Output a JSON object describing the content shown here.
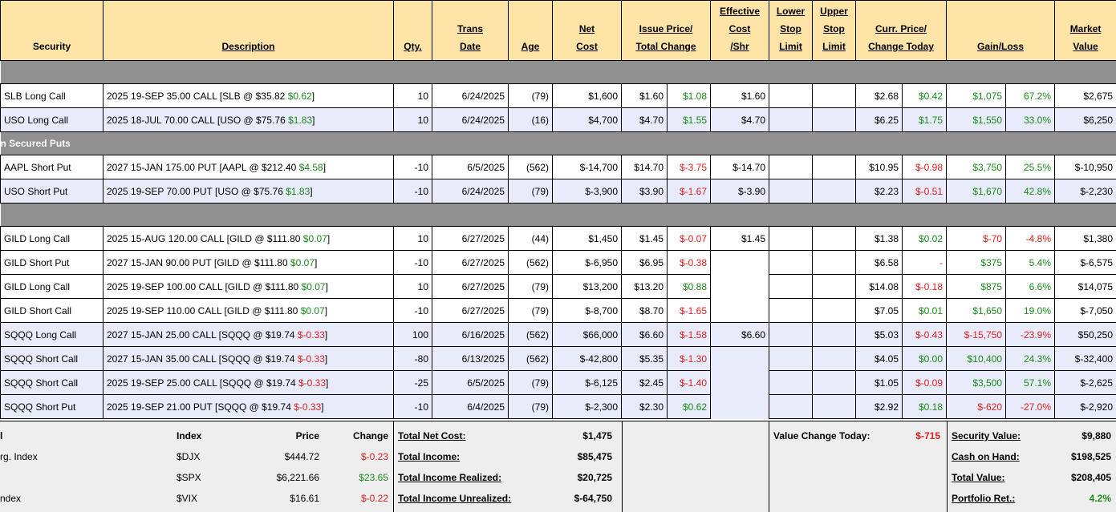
{
  "headers": {
    "security": "Security",
    "description": "Description",
    "qty": "Qty.",
    "trans_date": [
      "Trans",
      "Date"
    ],
    "age": "Age",
    "net_cost": [
      "Net",
      "Cost"
    ],
    "issue_price": [
      "Issue Price/",
      "Total Change"
    ],
    "effective_cost": [
      "Effective",
      "Cost",
      "/Shr"
    ],
    "lower_stop": [
      "Lower",
      "Stop",
      "Limit"
    ],
    "upper_stop": [
      "Upper",
      "Stop",
      "Limit"
    ],
    "curr_price": [
      "Curr. Price/",
      "Change Today"
    ],
    "gain_loss": "Gain/Loss",
    "market_value": [
      "Market",
      "Value"
    ]
  },
  "sections": [
    {
      "label": "",
      "rows": [
        {
          "security": "SLB Long Call",
          "desc": "2025 19-SEP 35.00 CALL [SLB @ $35.82 ",
          "desc_chg": "$0.62",
          "desc_chg_sign": "pos",
          "qty": "10",
          "date": "6/24/2025",
          "age": "(79)",
          "net": "$1,600",
          "issue": "$1.60",
          "tchg": "$1.08",
          "tchg_sign": "pos",
          "eff": "$1.60",
          "curr": "$2.68",
          "cchg": "$0.42",
          "cchg_sign": "pos",
          "gain": "$1,075",
          "gain_sign": "pos",
          "pct": "67.2%",
          "mv": "$2,675",
          "alt": false
        },
        {
          "security": "USO Long Call",
          "desc": "2025 18-JUL 70.00 CALL [USO @ $75.76 ",
          "desc_chg": "$1.83",
          "desc_chg_sign": "pos",
          "qty": "10",
          "date": "6/24/2025",
          "age": "(16)",
          "net": "$4,700",
          "issue": "$4.70",
          "tchg": "$1.55",
          "tchg_sign": "pos",
          "eff": "$4.70",
          "curr": "$6.25",
          "cchg": "$1.75",
          "cchg_sign": "pos",
          "gain": "$1,550",
          "gain_sign": "pos",
          "pct": "33.0%",
          "mv": "$6,250",
          "alt": true
        }
      ]
    },
    {
      "label": "n Secured Puts",
      "rows": [
        {
          "security": "AAPL Short Put",
          "desc": "2027 15-JAN 175.00 PUT [AAPL @ $212.40 ",
          "desc_chg": "$4.58",
          "desc_chg_sign": "pos",
          "qty": "-10",
          "date": "6/5/2025",
          "age": "(562)",
          "net": "$-14,700",
          "issue": "$14.70",
          "tchg": "$-3.75",
          "tchg_sign": "neg",
          "eff": "$-14.70",
          "curr": "$10.95",
          "cchg": "$-0.98",
          "cchg_sign": "neg",
          "gain": "$3,750",
          "gain_sign": "pos",
          "pct": "25.5%",
          "mv": "$-10,950",
          "alt": false
        },
        {
          "security": "USO Short Put",
          "desc": "2025 19-SEP 70.00 PUT [USO @ $75.76 ",
          "desc_chg": "$1.83",
          "desc_chg_sign": "pos",
          "qty": "-10",
          "date": "6/24/2025",
          "age": "(79)",
          "net": "$-3,900",
          "issue": "$3.90",
          "tchg": "$-1.67",
          "tchg_sign": "neg",
          "eff": "$-3.90",
          "curr": "$2.23",
          "cchg": "$-0.51",
          "cchg_sign": "neg",
          "gain": "$1,670",
          "gain_sign": "pos",
          "pct": "42.8%",
          "mv": "$-2,230",
          "alt": true
        }
      ]
    },
    {
      "label": "",
      "rows": [
        {
          "security": "GILD Long Call",
          "desc": "2025 15-AUG 120.00 CALL [GILD @ $111.80 ",
          "desc_chg": "$0.07",
          "desc_chg_sign": "pos",
          "qty": "10",
          "date": "6/27/2025",
          "age": "(44)",
          "net": "$1,450",
          "issue": "$1.45",
          "tchg": "$-0.07",
          "tchg_sign": "neg",
          "eff": "$1.45",
          "curr": "$1.38",
          "cchg": "$0.02",
          "cchg_sign": "pos",
          "gain": "$-70",
          "gain_sign": "neg",
          "pct": "-4.8%",
          "mv": "$1,380",
          "alt": false
        },
        {
          "security": "GILD Short Put",
          "desc": "2027 15-JAN 90.00 PUT [GILD @ $111.80 ",
          "desc_chg": "$0.07",
          "desc_chg_sign": "pos",
          "qty": "-10",
          "date": "6/27/2025",
          "age": "(562)",
          "net": "$-6,950",
          "issue": "$6.95",
          "tchg": "$-0.38",
          "tchg_sign": "neg",
          "eff": "",
          "curr": "$6.58",
          "cchg": "-",
          "cchg_sign": "neg",
          "gain": "$375",
          "gain_sign": "pos",
          "pct": "5.4%",
          "mv": "$-6,575",
          "alt": false
        },
        {
          "security": "GILD Long Call",
          "desc": "2025 19-SEP 100.00 CALL [GILD @ $111.80 ",
          "desc_chg": "$0.07",
          "desc_chg_sign": "pos",
          "qty": "10",
          "date": "6/27/2025",
          "age": "(79)",
          "net": "$13,200",
          "issue": "$13.20",
          "tchg": "$0.88",
          "tchg_sign": "pos",
          "eff": "",
          "curr": "$14.08",
          "cchg": "$-0.18",
          "cchg_sign": "neg",
          "gain": "$875",
          "gain_sign": "pos",
          "pct": "6.6%",
          "mv": "$14,075",
          "alt": false
        },
        {
          "security": "GILD Short Call",
          "desc": "2025 19-SEP 110.00 CALL [GILD @ $111.80 ",
          "desc_chg": "$0.07",
          "desc_chg_sign": "pos",
          "qty": "-10",
          "date": "6/27/2025",
          "age": "(79)",
          "net": "$-8,700",
          "issue": "$8.70",
          "tchg": "$-1.65",
          "tchg_sign": "neg",
          "eff": "",
          "curr": "$7.05",
          "cchg": "$0.01",
          "cchg_sign": "pos",
          "gain": "$1,650",
          "gain_sign": "pos",
          "pct": "19.0%",
          "mv": "$-7,050",
          "alt": false
        },
        {
          "security": "SQQQ Long Call",
          "desc": "2027 15-JAN 25.00 CALL [SQQQ @ $19.74 ",
          "desc_chg": "$-0.33",
          "desc_chg_sign": "neg",
          "qty": "100",
          "date": "6/16/2025",
          "age": "(562)",
          "net": "$66,000",
          "issue": "$6.60",
          "tchg": "$-1.58",
          "tchg_sign": "neg",
          "eff": "$6.60",
          "curr": "$5.03",
          "cchg": "$-0.43",
          "cchg_sign": "neg",
          "gain": "$-15,750",
          "gain_sign": "neg",
          "pct": "-23.9%",
          "mv": "$50,250",
          "alt": true
        },
        {
          "security": "SQQQ Short Call",
          "desc": "2027 15-JAN 35.00 CALL [SQQQ @ $19.74 ",
          "desc_chg": "$-0.33",
          "desc_chg_sign": "neg",
          "qty": "-80",
          "date": "6/13/2025",
          "age": "(562)",
          "net": "$-42,800",
          "issue": "$5.35",
          "tchg": "$-1.30",
          "tchg_sign": "neg",
          "eff": "",
          "curr": "$4.05",
          "cchg": "$0.00",
          "cchg_sign": "pos",
          "gain": "$10,400",
          "gain_sign": "pos",
          "pct": "24.3%",
          "mv": "$-32,400",
          "alt": true
        },
        {
          "security": "SQQQ Short Call",
          "desc": "2025 19-SEP 25.00 CALL [SQQQ @ $19.74 ",
          "desc_chg": "$-0.33",
          "desc_chg_sign": "neg",
          "qty": "-25",
          "date": "6/5/2025",
          "age": "(79)",
          "net": "$-6,125",
          "issue": "$2.45",
          "tchg": "$-1.40",
          "tchg_sign": "neg",
          "eff": "",
          "curr": "$1.05",
          "cchg": "$-0.09",
          "cchg_sign": "neg",
          "gain": "$3,500",
          "gain_sign": "pos",
          "pct": "57.1%",
          "mv": "$-2,625",
          "alt": true
        },
        {
          "security": "SQQQ Short Put",
          "desc": "2025 19-SEP 21.00 PUT [SQQQ @ $19.74 ",
          "desc_chg": "$-0.33",
          "desc_chg_sign": "neg",
          "qty": "-10",
          "date": "6/4/2025",
          "age": "(79)",
          "net": "$-2,300",
          "issue": "$2.30",
          "tchg": "$0.62",
          "tchg_sign": "pos",
          "eff": "",
          "curr": "$2.92",
          "cchg": "$0.18",
          "cchg_sign": "pos",
          "gain": "$-620",
          "gain_sign": "neg",
          "pct": "-27.0%",
          "mv": "$-2,920",
          "alt": true
        }
      ]
    }
  ],
  "index_table": {
    "headers": {
      "name": "l",
      "index": "Index",
      "price": "Price",
      "change": "Change"
    },
    "rows": [
      {
        "name": "rg. Index",
        "index": "$DJX",
        "price": "$444.72",
        "change": "$-0.23",
        "sign": "neg"
      },
      {
        "name": "",
        "index": "$SPX",
        "price": "$6,221.66",
        "change": "$23.65",
        "sign": "pos"
      },
      {
        "name": "ndex",
        "index": "$VIX",
        "price": "$16.61",
        "change": "$-0.22",
        "sign": "neg"
      }
    ]
  },
  "totals": [
    {
      "label": "Total Net Cost:",
      "value": "$1,475"
    },
    {
      "label": "Total Income:",
      "value": "$85,475"
    },
    {
      "label": "Total Income Realized:",
      "value": "$20,725"
    },
    {
      "label": "Total Income Unrealized:",
      "value": "$-64,750"
    }
  ],
  "value_change": {
    "label": "Value Change Today:",
    "value": "$-715"
  },
  "portfolio": [
    {
      "label": "Security Value:",
      "value": "$9,880",
      "sign": ""
    },
    {
      "label": "Cash on Hand:",
      "value": "$198,525",
      "sign": ""
    },
    {
      "label": "Total Value:",
      "value": "$208,405",
      "sign": ""
    },
    {
      "label": "Portfolio Ret.:",
      "value": "4.2%",
      "sign": "pos"
    }
  ],
  "colors": {
    "header_bg": "#ffe4a8",
    "section_bg": "#909090",
    "alt_row": "#e8ecfa",
    "positive": "#1a8a1a",
    "negative": "#e02020"
  }
}
